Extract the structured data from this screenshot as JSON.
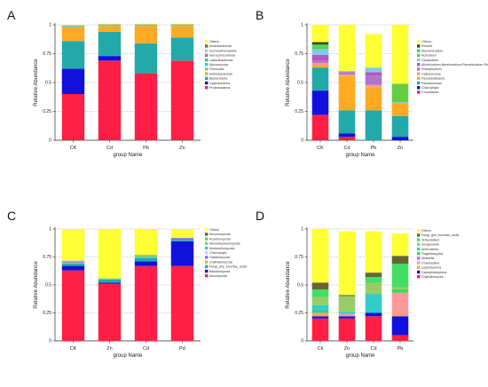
{
  "colors": {
    "Others": "#ffff33",
    "Acidobacteriota": "#7b6a2a",
    "Gemmatimonadota": "#a8d8a0",
    "Verrucomicrobiota": "#aa66cc",
    "Latescibacterota": "#33cc66",
    "Myxococcota": "#33cccc",
    "Firmicutes": "#66cc99",
    "Actinobacteriota": "#ffaa22",
    "Bacteroidota": "#22aaaa",
    "Cyanobacteria": "#1111dd",
    "Proteobacteria": "#ff1f44",
    "Pedobe": "#444422",
    "Mesorhizobium": "#33dd55",
    "Achrobium": "#66cc44",
    "Caulobacter": "#77ccee",
    "Allorhizobium-Neorhizobium-Pararhizobium-Rhizobium": "#bb55bb",
    "Rhizophydium": "#aa77cc",
    "Cellulomonas": "#ff9999",
    "Pseudanabaena": "#ffaa22",
    "Pseudomonas": "#22aaaa",
    "Chlorophyta": "#1111dd",
    "Cronobacter": "#ff1f44",
    "Mucoromycota": "#666633",
    "Rozellomycota": "#44dd66",
    "Monoblepharomycota": "#99cc66",
    "Mortierellomycota": "#33cccc",
    "Chlorophyta_F": "#ccccff",
    "Olpidiomycota": "#7777ee",
    "Chytridiomycota": "#ffaa22",
    "Fungi_phy_Incertae_sedis": "#22aaaa",
    "Basidiomycota": "#1111dd",
    "Ascomycota": "#ff1f44",
    "Fungi_gen_Incertae_sedis": "#666633",
    "Tetracladium": "#44dd66",
    "Gongronella": "#99cc66",
    "Ambrosiella": "#33cccc",
    "Flagelloscypha": "#33dd55",
    "Mrakiella": "#aa77cc",
    "Chaetopsina": "#ff9999",
    "Leptodophora": "#ffaa22",
    "Cladophialophora": "#1111dd",
    "Chytridiomyces": "#ff1f44"
  },
  "chart_data": [
    {
      "panel": "A",
      "type": "bar",
      "stacked": true,
      "categories": [
        "CK",
        "Cd",
        "Pb",
        "Zn"
      ],
      "xlabel": "group Name",
      "ylabel": "Relative Abundance",
      "ylim": [
        0,
        1
      ],
      "yticks": [
        "0",
        "0.25",
        "0.5",
        "0.75",
        "1"
      ],
      "legend_position": "right",
      "series": [
        {
          "name": "Proteobacteria",
          "values": [
            0.4,
            0.69,
            0.58,
            0.69
          ]
        },
        {
          "name": "Cyanobacteria",
          "values": [
            0.22,
            0.04,
            0.0,
            0.0
          ]
        },
        {
          "name": "Bacteroidota",
          "values": [
            0.24,
            0.21,
            0.26,
            0.2
          ]
        },
        {
          "name": "Actinobacteriota",
          "values": [
            0.12,
            0.05,
            0.15,
            0.1
          ]
        },
        {
          "name": "Firmicutes",
          "values": [
            0.005,
            0.005,
            0.005,
            0.005
          ]
        },
        {
          "name": "Myxococcota",
          "values": [
            0.002,
            0.002,
            0.002,
            0.002
          ]
        },
        {
          "name": "Latescibacterota",
          "values": [
            0.002,
            0.002,
            0.002,
            0.002
          ]
        },
        {
          "name": "Verrucomicrobiota",
          "values": [
            0.002,
            0.002,
            0.002,
            0.002
          ]
        },
        {
          "name": "Gemmatimonadota",
          "values": [
            0.002,
            0.002,
            0.002,
            0.002
          ]
        },
        {
          "name": "Acidobacteriota",
          "values": [
            0.002,
            0.002,
            0.002,
            0.002
          ]
        },
        {
          "name": "Others",
          "values": [
            0.005,
            0.005,
            0.005,
            0.005
          ]
        }
      ]
    },
    {
      "panel": "B",
      "type": "bar",
      "stacked": true,
      "categories": [
        "CK",
        "Cd",
        "Pb",
        "Zn"
      ],
      "xlabel": "group Name",
      "ylabel": "Relative Abundance",
      "ylim": [
        0,
        1
      ],
      "yticks": [
        "0",
        "0.25",
        "0.5",
        "0.75",
        "1"
      ],
      "legend_position": "right",
      "series": [
        {
          "name": "Cronobacter",
          "values": [
            0.22,
            0.03,
            0.0,
            0.0
          ]
        },
        {
          "name": "Chlorophyta",
          "values": [
            0.21,
            0.03,
            0.0,
            0.03
          ]
        },
        {
          "name": "Pseudomonas",
          "values": [
            0.2,
            0.2,
            0.26,
            0.18
          ]
        },
        {
          "name": "Pseudanabaena",
          "values": [
            0.02,
            0.3,
            0.2,
            0.11
          ]
        },
        {
          "name": "Cellulomonas",
          "values": [
            0.02,
            0.01,
            0.02,
            0.0
          ]
        },
        {
          "name": "Rhizophydium",
          "values": [
            0.02,
            0.01,
            0.08,
            0.0
          ]
        },
        {
          "name": "Allorhizobium-Neorhizobium-Pararhizobium-Rhizobium",
          "values": [
            0.05,
            0.01,
            0.03,
            0.0
          ]
        },
        {
          "name": "Caulobacter",
          "values": [
            0.05,
            0.01,
            0.04,
            0.01
          ]
        },
        {
          "name": "Achrobium",
          "values": [
            0.02,
            0.0,
            0.0,
            0.16
          ]
        },
        {
          "name": "Mesorhizobium",
          "values": [
            0.02,
            0.0,
            0.0,
            0.0
          ]
        },
        {
          "name": "Pedobe",
          "values": [
            0.02,
            0.0,
            0.0,
            0.0
          ]
        },
        {
          "name": "Others",
          "values": [
            0.15,
            0.4,
            0.29,
            0.51
          ]
        }
      ]
    },
    {
      "panel": "C",
      "type": "bar",
      "stacked": true,
      "categories": [
        "CK",
        "Zn",
        "Cd",
        "Pd"
      ],
      "xlabel": "group Name",
      "ylabel": "Relative Abundance",
      "ylim": [
        0,
        1
      ],
      "yticks": [
        "0",
        "0.25",
        "0.5",
        "0.75",
        "1"
      ],
      "legend_position": "right",
      "series": [
        {
          "name": "Ascomycota",
          "values": [
            0.63,
            0.51,
            0.67,
            0.67
          ]
        },
        {
          "name": "Basidiomycota",
          "values": [
            0.04,
            0.01,
            0.04,
            0.22
          ]
        },
        {
          "name": "Fungi_phy_Incertae_sedis",
          "values": [
            0.02,
            0.03,
            0.03,
            0.01
          ]
        },
        {
          "name": "Chytridiomycota",
          "values": [
            0.01,
            0.0,
            0.0,
            0.0
          ]
        },
        {
          "name": "Olpidiomycota",
          "values": [
            0.01,
            0.0,
            0.0,
            0.02
          ]
        },
        {
          "name": "Chlorophyta",
          "values": [
            0.01,
            0.0,
            0.0,
            0.0
          ]
        },
        {
          "name": "Mortierellomycota",
          "values": [
            0.0,
            0.0,
            0.01,
            0.0
          ]
        },
        {
          "name": "Monoblepharomycota",
          "values": [
            0.0,
            0.01,
            0.02,
            0.0
          ]
        },
        {
          "name": "Rozellomycota",
          "values": [
            0.0,
            0.0,
            0.0,
            0.0
          ]
        },
        {
          "name": "Mucoromycota",
          "values": [
            0.0,
            0.0,
            0.0,
            0.0
          ]
        },
        {
          "name": "Others",
          "values": [
            0.28,
            0.44,
            0.23,
            0.08
          ]
        }
      ]
    },
    {
      "panel": "D",
      "type": "bar",
      "stacked": true,
      "categories": [
        "Ck",
        "Zn",
        "Cd",
        "Pb"
      ],
      "xlabel": "group Name",
      "ylabel": "Relative Abundance",
      "ylim": [
        0,
        1
      ],
      "yticks": [
        "0",
        "0.25",
        "0.5",
        "0.75",
        "1"
      ],
      "legend_position": "right",
      "series": [
        {
          "name": "Chytridiomyces",
          "values": [
            0.2,
            0.2,
            0.22,
            0.05
          ]
        },
        {
          "name": "Cladophialophora",
          "values": [
            0.02,
            0.02,
            0.03,
            0.17
          ]
        },
        {
          "name": "Leptodophora",
          "values": [
            0.01,
            0.0,
            0.0,
            0.01
          ]
        },
        {
          "name": "Chaetopsina",
          "values": [
            0.02,
            0.02,
            0.0,
            0.2
          ]
        },
        {
          "name": "Mrakiella",
          "values": [
            0.0,
            0.0,
            0.0,
            0.0
          ]
        },
        {
          "name": "Flagelloscypha",
          "values": [
            0.02,
            0.0,
            0.0,
            0.03
          ]
        },
        {
          "name": "Ambrosiella",
          "values": [
            0.05,
            0.02,
            0.17,
            0.0
          ]
        },
        {
          "name": "Gongronella",
          "values": [
            0.07,
            0.14,
            0.1,
            0.02
          ]
        },
        {
          "name": "Tetracladium",
          "values": [
            0.07,
            0.0,
            0.05,
            0.21
          ]
        },
        {
          "name": "Fungi_gen_Incertae_sedis",
          "values": [
            0.06,
            0.01,
            0.04,
            0.07
          ]
        },
        {
          "name": "Others",
          "values": [
            0.48,
            0.57,
            0.37,
            0.2
          ]
        }
      ]
    }
  ],
  "legends": {
    "A": [
      "Others",
      "Acidobacteriota",
      "Gemmatimonadota",
      "Verrucomicrobiota",
      "Latescibacterota",
      "Myxococcota",
      "Firmicutes",
      "Actinobacteriota",
      "Bacteroidota",
      "Cyanobacteria",
      "Proteobacteria"
    ],
    "B": [
      "Others",
      "Pedobe",
      "Mesorhizobium",
      "Achrobium",
      "Caulobacter",
      "Allorhizobium-Neorhizobium-Pararhizobium-Rhizobium",
      "Rhizophydium",
      "Cellulomonas",
      "Pseudanabaena",
      "Pseudomonas",
      "Chlorophyta",
      "Cronobacter"
    ],
    "C": [
      "Others",
      "Mucoromycota",
      "Rozellomycota",
      "Monoblepharomycota",
      "Mortierellomycota",
      "Chlorophyta",
      "Olpidiomycota",
      "Chytridiomycota",
      "Fungi_phy_Incertae_sedis",
      "Basidiomycota",
      "Ascomycota"
    ],
    "D": [
      "Others",
      "Fungi_gen_Incertae_sedis",
      "Tetracladium",
      "Gongronella",
      "Ambrosiella",
      "Flagelloscypha",
      "Mrakiella",
      "Chaetopsina",
      "Leptodophora",
      "Cladophialophora",
      "Chytridiomyces"
    ]
  }
}
